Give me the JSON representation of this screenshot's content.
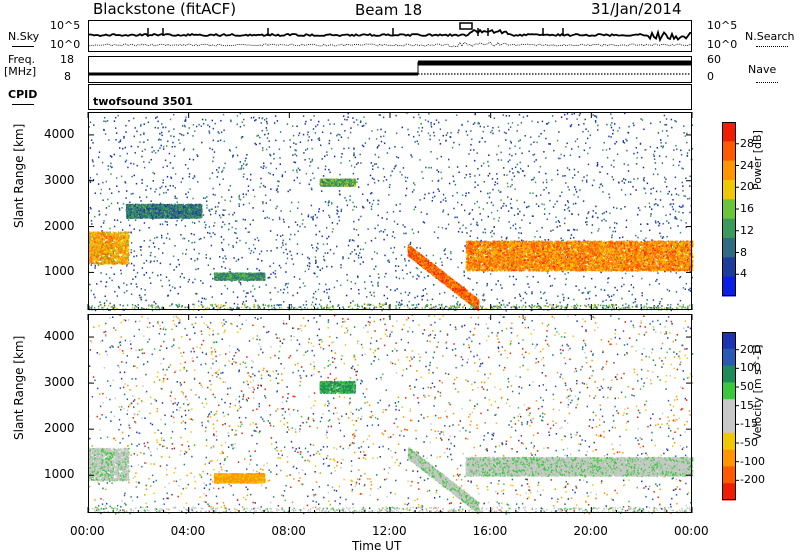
{
  "header": {
    "station": "Blackstone (fitACF)",
    "beam": "Beam 18",
    "date": "31/Jan/2014"
  },
  "noise_panel": {
    "left_label": "N.Sky",
    "right_label": "N.Search",
    "left_ticks": [
      "10^5",
      "10^0"
    ],
    "right_ticks": [
      "10^5",
      "10^0"
    ]
  },
  "freq_panel": {
    "left_label_line1": "Freq.",
    "left_label_line2": "[MHz]",
    "left_ticks": [
      "18",
      "8"
    ],
    "right_label": "Nave",
    "right_ticks": [
      "60",
      "0"
    ]
  },
  "cpid": {
    "label": "CPID",
    "value": "twofsound 3501"
  },
  "axes": {
    "ylabel": "Slant Range [km]",
    "xlabel": "Time UT",
    "x_ticks": [
      "00:00",
      "04:00",
      "08:00",
      "12:00",
      "16:00",
      "20:00",
      "00:00"
    ],
    "y_ticks": [
      "1000",
      "2000",
      "3000",
      "4000"
    ]
  },
  "chart_data": [
    {
      "type": "heatmap",
      "parameter": "Power",
      "colorbar_label": "Power [dB]",
      "colorbar_ticks": [
        "4",
        "8",
        "12",
        "16",
        "20",
        "24",
        "28"
      ],
      "colorbar_colors": [
        "#0b1ee6",
        "#1e3c9c",
        "#2f6b82",
        "#3a9a5c",
        "#6cc43a",
        "#f0c800",
        "#ff9600",
        "#ff5a00",
        "#f01e00"
      ],
      "x_range_hours": [
        0,
        24
      ],
      "y_range_km": [
        180,
        4500
      ],
      "features": [
        {
          "desc": "band",
          "t_start": 0.0,
          "t_end": 1.6,
          "range_start": 1200,
          "range_end": 1900,
          "power": 22
        },
        {
          "desc": "band",
          "t_start": 1.5,
          "t_end": 4.5,
          "range_start": 2200,
          "range_end": 2500,
          "power": 10
        },
        {
          "desc": "band",
          "t_start": 5.0,
          "t_end": 7.0,
          "range_start": 850,
          "range_end": 1000,
          "power": 12
        },
        {
          "desc": "band",
          "t_start": 9.2,
          "t_end": 10.6,
          "range_start": 2900,
          "range_end": 3050,
          "power": 14
        },
        {
          "desc": "band",
          "t_start": 12.7,
          "t_end": 15.5,
          "range_start": 300,
          "range_end": 1500,
          "power": 26
        },
        {
          "desc": "band",
          "t_start": 15.0,
          "t_end": 24.0,
          "range_start": 1050,
          "range_end": 1700,
          "power": 24
        }
      ]
    },
    {
      "type": "heatmap",
      "parameter": "Velocity",
      "colorbar_label": "Velocity [m s^-1]",
      "colorbar_ticks": [
        "200",
        "100",
        "50",
        "15",
        "-15",
        "-50",
        "-100",
        "-200"
      ],
      "colorbar_colors": [
        "#1e32b4",
        "#285ab4",
        "#1e8c5a",
        "#3cc83c",
        "#c8c8c8",
        "#c8c8c8",
        "#f0c800",
        "#ff9600",
        "#ff5a00",
        "#f01e00"
      ],
      "x_range_hours": [
        0,
        24
      ],
      "y_range_km": [
        180,
        4500
      ],
      "features": [
        {
          "desc": "band",
          "t_start": 0.0,
          "t_end": 1.6,
          "range_start": 900,
          "range_end": 1600,
          "velocity": 0
        },
        {
          "desc": "band",
          "t_start": 5.0,
          "t_end": 7.0,
          "range_start": 850,
          "range_end": 1050,
          "velocity": -80
        },
        {
          "desc": "band",
          "t_start": 9.2,
          "t_end": 10.6,
          "range_start": 2800,
          "range_end": 3050,
          "velocity": 40
        },
        {
          "desc": "band",
          "t_start": 12.7,
          "t_end": 15.5,
          "range_start": 300,
          "range_end": 1500,
          "velocity": 0
        },
        {
          "desc": "band",
          "t_start": 15.0,
          "t_end": 24.0,
          "range_start": 1000,
          "range_end": 1400,
          "velocity": 0
        }
      ]
    }
  ]
}
